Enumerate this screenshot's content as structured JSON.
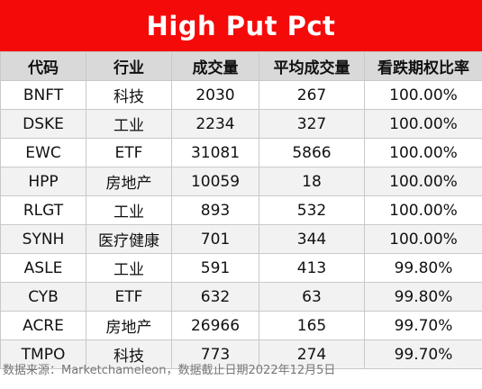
{
  "title": "High Put Pct",
  "columns": [
    "代码",
    "行业",
    "成交量",
    "平均成交量",
    "看跌期权比率"
  ],
  "rows": [
    [
      "BNFT",
      "科技",
      "2030",
      "267",
      "100.00%"
    ],
    [
      "DSKE",
      "工业",
      "2234",
      "327",
      "100.00%"
    ],
    [
      "EWC",
      "ETF",
      "31081",
      "5866",
      "100.00%"
    ],
    [
      "HPP",
      "房地产",
      "10059",
      "18",
      "100.00%"
    ],
    [
      "RLGT",
      "工业",
      "893",
      "532",
      "100.00%"
    ],
    [
      "SYNH",
      "医疗健康",
      "701",
      "344",
      "100.00%"
    ],
    [
      "ASLE",
      "工业",
      "591",
      "413",
      "99.80%"
    ],
    [
      "CYB",
      "ETF",
      "632",
      "63",
      "99.80%"
    ],
    [
      "ACRE",
      "房地产",
      "26966",
      "165",
      "99.70%"
    ],
    [
      "TMPO",
      "科技",
      "773",
      "274",
      "99.70%"
    ]
  ],
  "footnote": "数据来源：Marketchameleon，数据截止日期2022年12月5日",
  "colors": {
    "title_bg": "#f50a0a",
    "header_bg": "#d9d9d9",
    "stripe_bg": "#f2f2f2"
  }
}
